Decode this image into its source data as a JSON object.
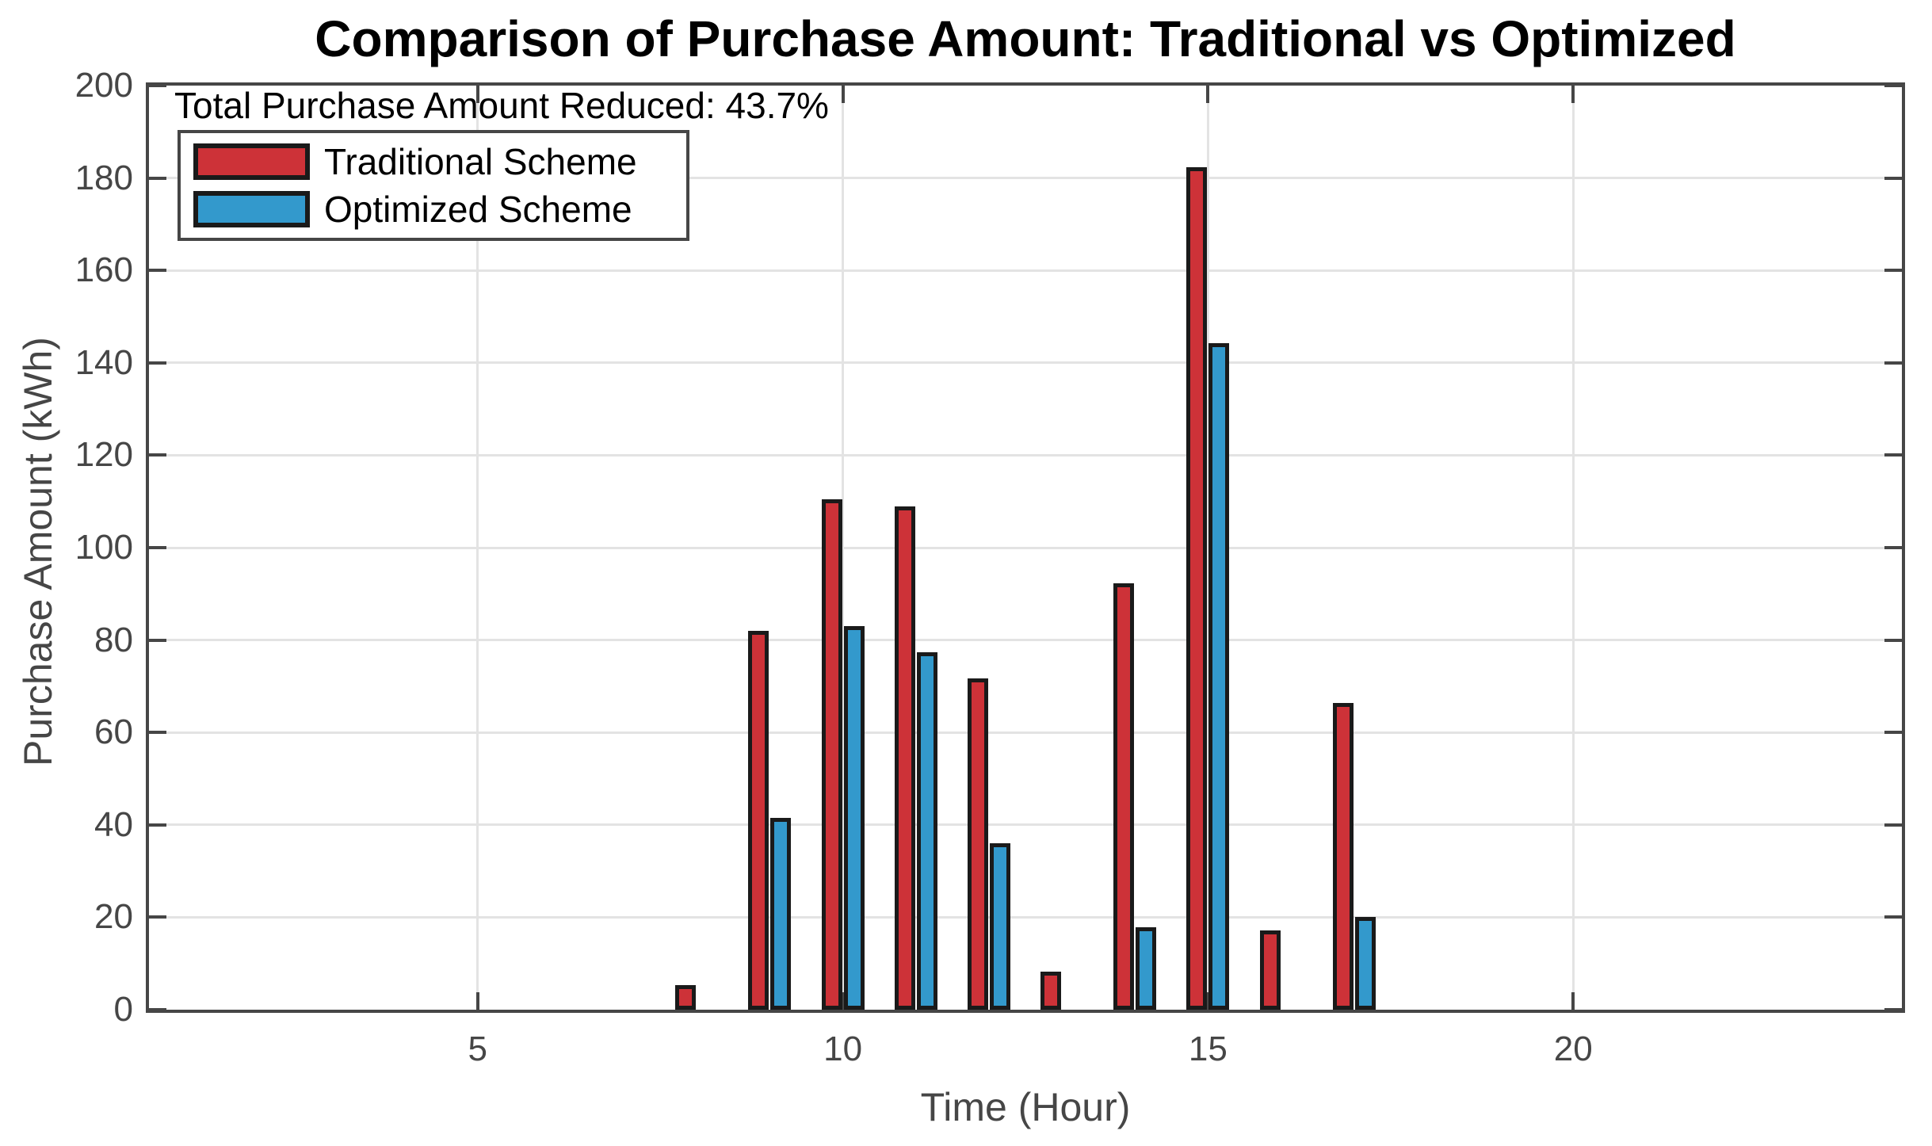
{
  "chart_data": {
    "type": "bar",
    "title": "Comparison of Purchase Amount: Traditional vs Optimized",
    "annotation": "Total Purchase Amount Reduced: 43.7%",
    "xlabel": "Time (Hour)",
    "ylabel": "Purchase Amount (kWh)",
    "xlim": [
      0.5,
      24.5
    ],
    "ylim": [
      0,
      200
    ],
    "xticks": [
      5,
      10,
      15,
      20
    ],
    "yticks": [
      0,
      20,
      40,
      60,
      80,
      100,
      120,
      140,
      160,
      180,
      200
    ],
    "grid": true,
    "legend_position": "top-left",
    "x": [
      1,
      2,
      3,
      4,
      5,
      6,
      7,
      8,
      9,
      10,
      11,
      12,
      13,
      14,
      15,
      16,
      17,
      18,
      19,
      20,
      21,
      22,
      23,
      24
    ],
    "series": [
      {
        "name": "Traditional Scheme",
        "color": "#cd3238",
        "values": [
          0,
          0,
          0,
          0,
          0,
          0,
          0,
          5.3,
          82.0,
          110.5,
          109.0,
          71.7,
          8.3,
          92.3,
          182.3,
          17.2,
          66.4,
          0,
          0,
          0,
          0,
          0,
          0,
          0
        ]
      },
      {
        "name": "Optimized Scheme",
        "color": "#3399cc",
        "values": [
          0,
          0,
          0,
          0,
          0,
          0,
          0,
          0,
          41.5,
          83.0,
          77.3,
          36.0,
          0,
          17.9,
          144.3,
          0,
          20.0,
          0,
          0,
          0,
          0,
          0,
          0,
          0
        ]
      }
    ],
    "colors": {
      "axis": "#464646",
      "grid": "#e3e3e3",
      "bar_edge": "#1a1a1a",
      "background": "#ffffff"
    }
  }
}
